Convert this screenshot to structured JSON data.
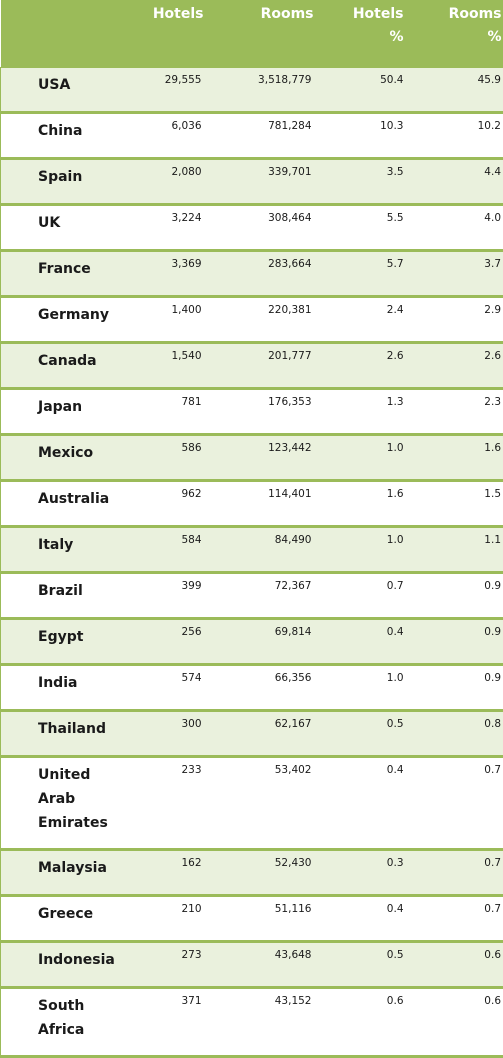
{
  "table": {
    "headers": {
      "country": "",
      "hotels": "Hotels",
      "rooms": "Rooms",
      "hotels_pct_line1": "Hotels",
      "hotels_pct_line2": "%",
      "rooms_pct_line1": "Rooms",
      "rooms_pct_line2": "%"
    },
    "rows": [
      {
        "country": "USA",
        "hotels": "29,555",
        "rooms": "3,518,779",
        "hotels_pct": "50.4",
        "rooms_pct": "45.9"
      },
      {
        "country": "China",
        "hotels": "6,036",
        "rooms": "781,284",
        "hotels_pct": "10.3",
        "rooms_pct": "10.2"
      },
      {
        "country": "Spain",
        "hotels": "2,080",
        "rooms": "339,701",
        "hotels_pct": "3.5",
        "rooms_pct": "4.4"
      },
      {
        "country": "UK",
        "hotels": "3,224",
        "rooms": "308,464",
        "hotels_pct": "5.5",
        "rooms_pct": "4.0"
      },
      {
        "country": "France",
        "hotels": "3,369",
        "rooms": "283,664",
        "hotels_pct": "5.7",
        "rooms_pct": "3.7"
      },
      {
        "country": "Germany",
        "hotels": "1,400",
        "rooms": "220,381",
        "hotels_pct": "2.4",
        "rooms_pct": "2.9"
      },
      {
        "country": "Canada",
        "hotels": "1,540",
        "rooms": "201,777",
        "hotels_pct": "2.6",
        "rooms_pct": "2.6"
      },
      {
        "country": "Japan",
        "hotels": "781",
        "rooms": "176,353",
        "hotels_pct": "1.3",
        "rooms_pct": "2.3"
      },
      {
        "country": "Mexico",
        "hotels": "586",
        "rooms": "123,442",
        "hotels_pct": "1.0",
        "rooms_pct": "1.6"
      },
      {
        "country": "Australia",
        "hotels": "962",
        "rooms": "114,401",
        "hotels_pct": "1.6",
        "rooms_pct": "1.5"
      },
      {
        "country": "Italy",
        "hotels": "584",
        "rooms": "84,490",
        "hotels_pct": "1.0",
        "rooms_pct": "1.1"
      },
      {
        "country": "Brazil",
        "hotels": "399",
        "rooms": "72,367",
        "hotels_pct": "0.7",
        "rooms_pct": "0.9"
      },
      {
        "country": "Egypt",
        "hotels": "256",
        "rooms": "69,814",
        "hotels_pct": "0.4",
        "rooms_pct": "0.9"
      },
      {
        "country": "India",
        "hotels": "574",
        "rooms": "66,356",
        "hotels_pct": "1.0",
        "rooms_pct": "0.9"
      },
      {
        "country": "Thailand",
        "hotels": "300",
        "rooms": "62,167",
        "hotels_pct": "0.5",
        "rooms_pct": "0.8"
      },
      {
        "country": "United Arab Emirates",
        "hotels": "233",
        "rooms": "53,402",
        "hotels_pct": "0.4",
        "rooms_pct": "0.7"
      },
      {
        "country": "Malaysia",
        "hotels": "162",
        "rooms": "52,430",
        "hotels_pct": "0.3",
        "rooms_pct": "0.7"
      },
      {
        "country": "Greece",
        "hotels": "210",
        "rooms": "51,116",
        "hotels_pct": "0.4",
        "rooms_pct": "0.7"
      },
      {
        "country": "Indonesia",
        "hotels": "273",
        "rooms": "43,648",
        "hotels_pct": "0.5",
        "rooms_pct": "0.6"
      },
      {
        "country": "South Africa",
        "hotels": "371",
        "rooms": "43,152",
        "hotels_pct": "0.6",
        "rooms_pct": "0.6"
      }
    ]
  },
  "colors": {
    "header_bg": "#9bbb59",
    "band_bg": "#eaf1dd",
    "border": "#9bbb59"
  }
}
